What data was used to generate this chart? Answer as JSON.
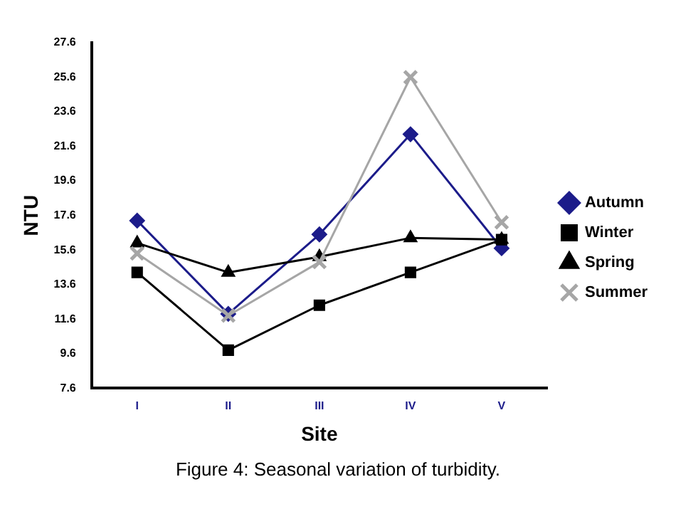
{
  "chart_data": {
    "type": "line",
    "title": "Figure 4: Seasonal variation of turbidity.",
    "xlabel": "Site",
    "ylabel": "NTU",
    "categories": [
      "I",
      "II",
      "III",
      "IV",
      "V"
    ],
    "series": [
      {
        "name": "Autumn",
        "color": "#1c1c8a",
        "marker": "diamond",
        "values": [
          17.3,
          11.9,
          16.5,
          22.3,
          15.7
        ]
      },
      {
        "name": "Winter",
        "color": "#000000",
        "marker": "square",
        "values": [
          14.3,
          9.8,
          12.4,
          14.3,
          16.2
        ]
      },
      {
        "name": "Spring",
        "color": "#000000",
        "marker": "triangle",
        "values": [
          16.0,
          14.3,
          15.2,
          16.3,
          16.2
        ]
      },
      {
        "name": "Summer",
        "color": "#a6a6a6",
        "marker": "cross",
        "values": [
          15.4,
          11.8,
          14.9,
          25.6,
          17.2
        ]
      }
    ],
    "ylim": [
      7.6,
      27.6
    ],
    "yticks": [
      7.6,
      9.6,
      11.6,
      13.6,
      15.6,
      17.6,
      19.6,
      21.6,
      23.6,
      25.6,
      27.6
    ],
    "grid": false,
    "legend": "right"
  }
}
